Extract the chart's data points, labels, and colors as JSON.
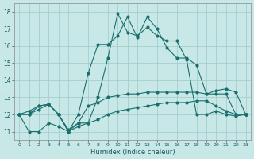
{
  "xlabel": "Humidex (Indice chaleur)",
  "xlim": [
    -0.5,
    23.5
  ],
  "ylim": [
    10.5,
    18.5
  ],
  "yticks": [
    11,
    12,
    13,
    14,
    15,
    16,
    17,
    18
  ],
  "xticks": [
    0,
    1,
    2,
    3,
    4,
    5,
    6,
    7,
    8,
    9,
    10,
    11,
    12,
    13,
    14,
    15,
    16,
    17,
    18,
    19,
    20,
    21,
    22,
    23
  ],
  "bg_color": "#c8e8e8",
  "grid_color": "#a0c8c8",
  "line_color": "#1a6e6e",
  "series1": [
    12.0,
    12.2,
    12.5,
    12.6,
    12.0,
    11.0,
    12.0,
    14.4,
    16.1,
    16.1,
    16.6,
    17.7,
    16.5,
    17.7,
    17.0,
    15.9,
    15.3,
    15.3,
    14.9,
    13.2,
    13.4,
    13.5,
    13.3,
    12.0
  ],
  "series2": [
    12.0,
    12.0,
    12.3,
    12.6,
    12.0,
    11.0,
    11.5,
    11.5,
    13.0,
    15.3,
    17.9,
    16.8,
    16.6,
    17.1,
    16.6,
    16.3,
    16.3,
    15.2,
    12.0,
    12.0,
    12.2,
    12.0,
    11.9,
    12.0
  ],
  "series3": [
    12.0,
    12.0,
    12.5,
    12.6,
    12.0,
    11.1,
    11.5,
    12.5,
    12.7,
    13.0,
    13.1,
    13.2,
    13.2,
    13.3,
    13.3,
    13.3,
    13.3,
    13.3,
    13.3,
    13.2,
    13.2,
    13.2,
    12.0,
    12.0
  ],
  "series4": [
    12.0,
    11.0,
    11.0,
    11.5,
    11.3,
    11.0,
    11.3,
    11.5,
    11.7,
    12.0,
    12.2,
    12.3,
    12.4,
    12.5,
    12.6,
    12.7,
    12.7,
    12.7,
    12.8,
    12.8,
    12.5,
    12.2,
    12.0,
    12.0
  ]
}
